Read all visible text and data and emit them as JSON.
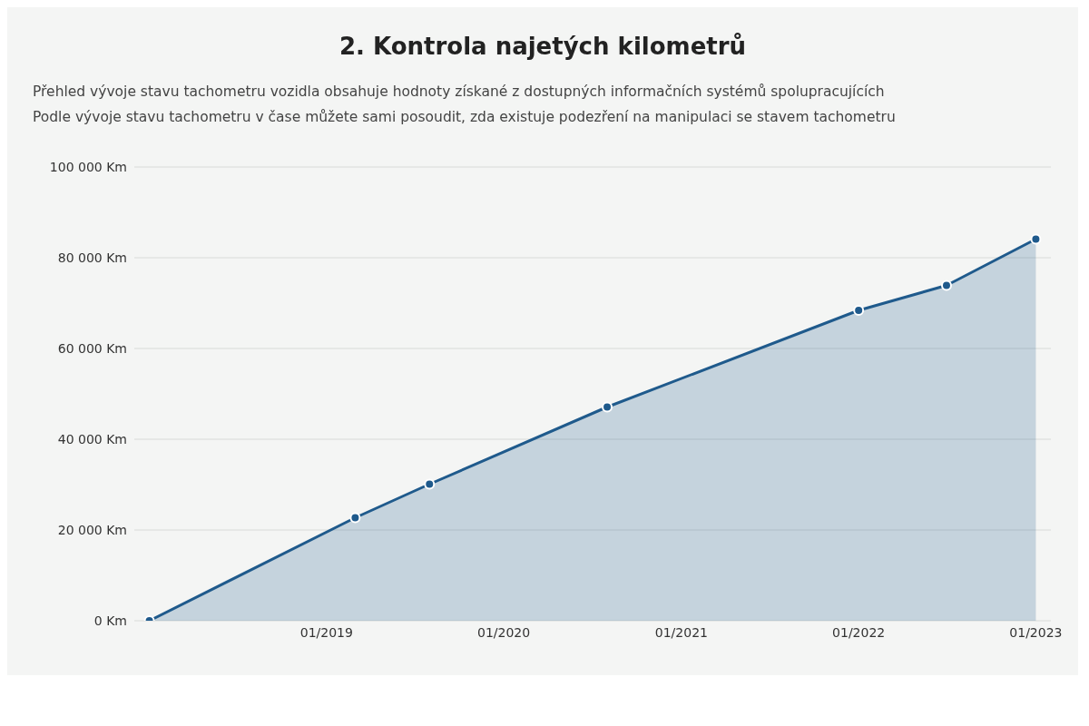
{
  "chart_data": {
    "type": "area",
    "title": "2. Kontrola najetých kilometrů",
    "annotations": [
      "Přehled vývoje stavu tachometru vozidla obsahuje hodnoty získané z dostupných informačních systémů spolupracujících",
      "Podle vývoje stavu tachometru v čase můžete sami posoudit, zda existuje podezření na manipulaci se stavem tachometru"
    ],
    "x": [
      "2018-01",
      "2019-03",
      "2019-08",
      "2020-08",
      "2022-01",
      "2022-07",
      "2023-01"
    ],
    "series": [
      {
        "color": "#1f5a8c",
        "values": [
          0,
          22700,
          30100,
          47100,
          68400,
          73900,
          84100
        ]
      }
    ],
    "xlim": [
      "2017-12",
      "2023-02"
    ],
    "xticks": [
      {
        "value": "2019-01",
        "label": "01/2019"
      },
      {
        "value": "2020-01",
        "label": "01/2020"
      },
      {
        "value": "2021-01",
        "label": "01/2021"
      },
      {
        "value": "2022-01",
        "label": "01/2022"
      },
      {
        "value": "2023-01",
        "label": "01/2023"
      }
    ],
    "ylim": [
      0,
      100000
    ],
    "yticks": [
      {
        "value": 0,
        "label": "0 Km"
      },
      {
        "value": 20000,
        "label": "20 000 Km"
      },
      {
        "value": 40000,
        "label": "40 000 Km"
      },
      {
        "value": 60000,
        "label": "60 000 Km"
      },
      {
        "value": 80000,
        "label": "80 000 Km"
      },
      {
        "value": 100000,
        "label": "100 000 Km"
      }
    ],
    "grid": "y",
    "marker": "circle"
  }
}
